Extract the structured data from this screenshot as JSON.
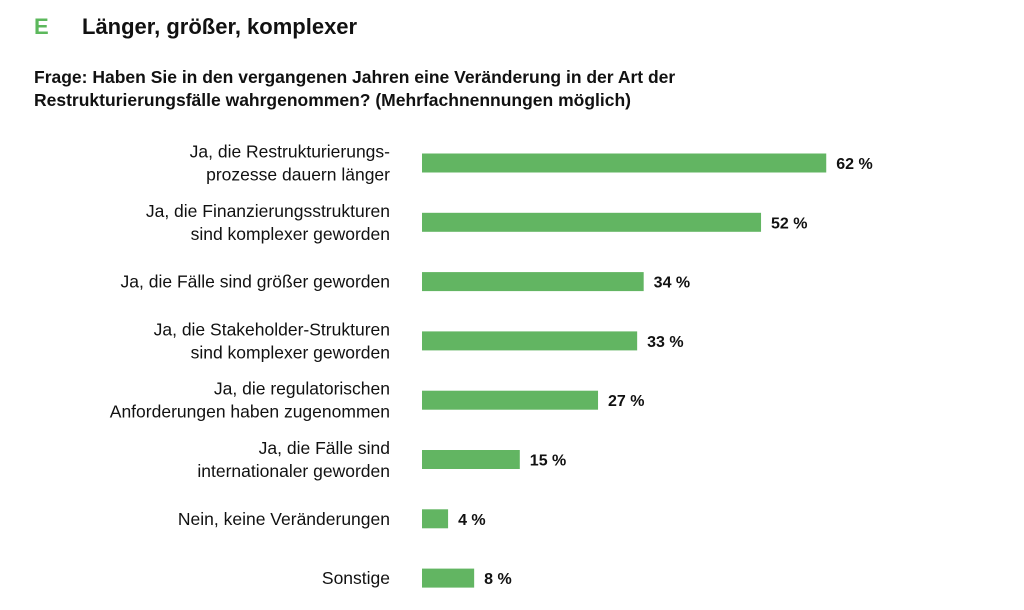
{
  "header": {
    "letter": "E",
    "title": "Länger, größer, komplexer"
  },
  "question": {
    "line1": "Frage: Haben Sie in den vergangenen Jahren eine Veränderung in der Art der",
    "line2": "Restrukturierungsfälle wahrgenommen? (Mehrfachnennungen möglich)"
  },
  "colors": {
    "accent": "#5cb85c",
    "bar": "#62b562",
    "text": "#111111"
  },
  "chart_data": {
    "type": "bar",
    "orientation": "horizontal",
    "title": "Länger, größer, komplexer",
    "subtitle": "Frage: Haben Sie in den vergangenen Jahren eine Veränderung in der Art der Restrukturierungsfälle wahrgenommen? (Mehrfachnennungen möglich)",
    "categories": [
      [
        "Ja, die Restrukturierungs-",
        "prozesse dauern länger"
      ],
      [
        "Ja, die Finanzierungsstrukturen",
        "sind komplexer geworden"
      ],
      [
        "Ja, die Fälle sind größer geworden"
      ],
      [
        "Ja, die Stakeholder-Strukturen",
        "sind komplexer geworden"
      ],
      [
        "Ja, die regulatorischen",
        "Anforderungen haben zugenommen"
      ],
      [
        "Ja, die Fälle sind",
        "internationaler geworden"
      ],
      [
        "Nein, keine Veränderungen"
      ],
      [
        "Sonstige"
      ]
    ],
    "values": [
      62,
      52,
      34,
      33,
      27,
      15,
      4,
      8
    ],
    "value_labels": [
      "62 %",
      "52 %",
      "34 %",
      "33 %",
      "27 %",
      "15 %",
      "4 %",
      "8 %"
    ],
    "unit": "%",
    "xlabel": "",
    "ylabel": "",
    "xlim": [
      0,
      100
    ],
    "grid": false,
    "legend": "none"
  }
}
